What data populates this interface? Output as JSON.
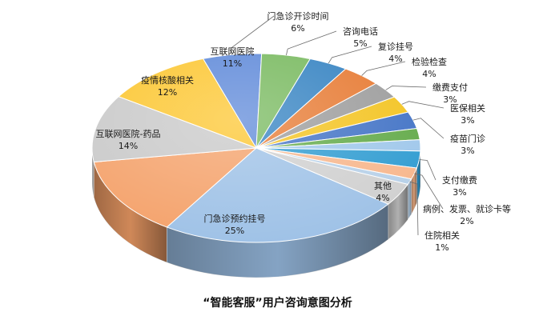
{
  "chart_data": {
    "type": "pie",
    "title": "“智能客服”用户咨询意图分析",
    "legend": "none",
    "slices": [
      {
        "label": "门急诊开诊时间",
        "value": 6,
        "display": "6%",
        "color": "#5a86d8"
      },
      {
        "label": "咨询电话",
        "value": 5,
        "display": "5%",
        "color": "#74b75a"
      },
      {
        "label": "复诊挂号",
        "value": 4,
        "display": "4%",
        "color": "#2f7fc0"
      },
      {
        "label": "检验检查",
        "value": 4,
        "display": "4%",
        "color": "#e6772e"
      },
      {
        "label": "缴费支付",
        "value": 3,
        "display": "3%",
        "color": "#9a9a9a"
      },
      {
        "label": "医保相关",
        "value": 3,
        "display": "3%",
        "color": "#f3c21b"
      },
      {
        "label": "疫苗门诊",
        "value": 3,
        "display": "3%",
        "color": "#3d6fc4"
      },
      {
        "label": "",
        "value": 2,
        "display": "",
        "color": "#5fa845"
      },
      {
        "label": "",
        "value": 2,
        "display": "",
        "color": "#9dc6ea"
      },
      {
        "label": "支付缴费",
        "value": 3,
        "display": "3%",
        "color": "#2c9ad0"
      },
      {
        "label": "病例、发票、就诊卡等",
        "value": 2,
        "display": "2%",
        "color": "#f7b58a"
      },
      {
        "label": "住院相关",
        "value": 1,
        "display": "1%",
        "color": "#b5cfe8"
      },
      {
        "label": "其他",
        "value": 4,
        "display": "4%",
        "color": "#cfcfcf"
      },
      {
        "label": "门急诊预约挂号",
        "value": 25,
        "display": "25%",
        "color": "#9cc0e6"
      },
      {
        "label": "互联网医院-药品",
        "value": 14,
        "display": "14%",
        "color": "#f4a068"
      },
      {
        "label": "疫情核酸相关",
        "value": 12,
        "display": "12%",
        "color": "#c8c8c8"
      },
      {
        "label": "互联网医院",
        "value": 11,
        "display": "11%",
        "color": "#fcc52c"
      }
    ]
  }
}
